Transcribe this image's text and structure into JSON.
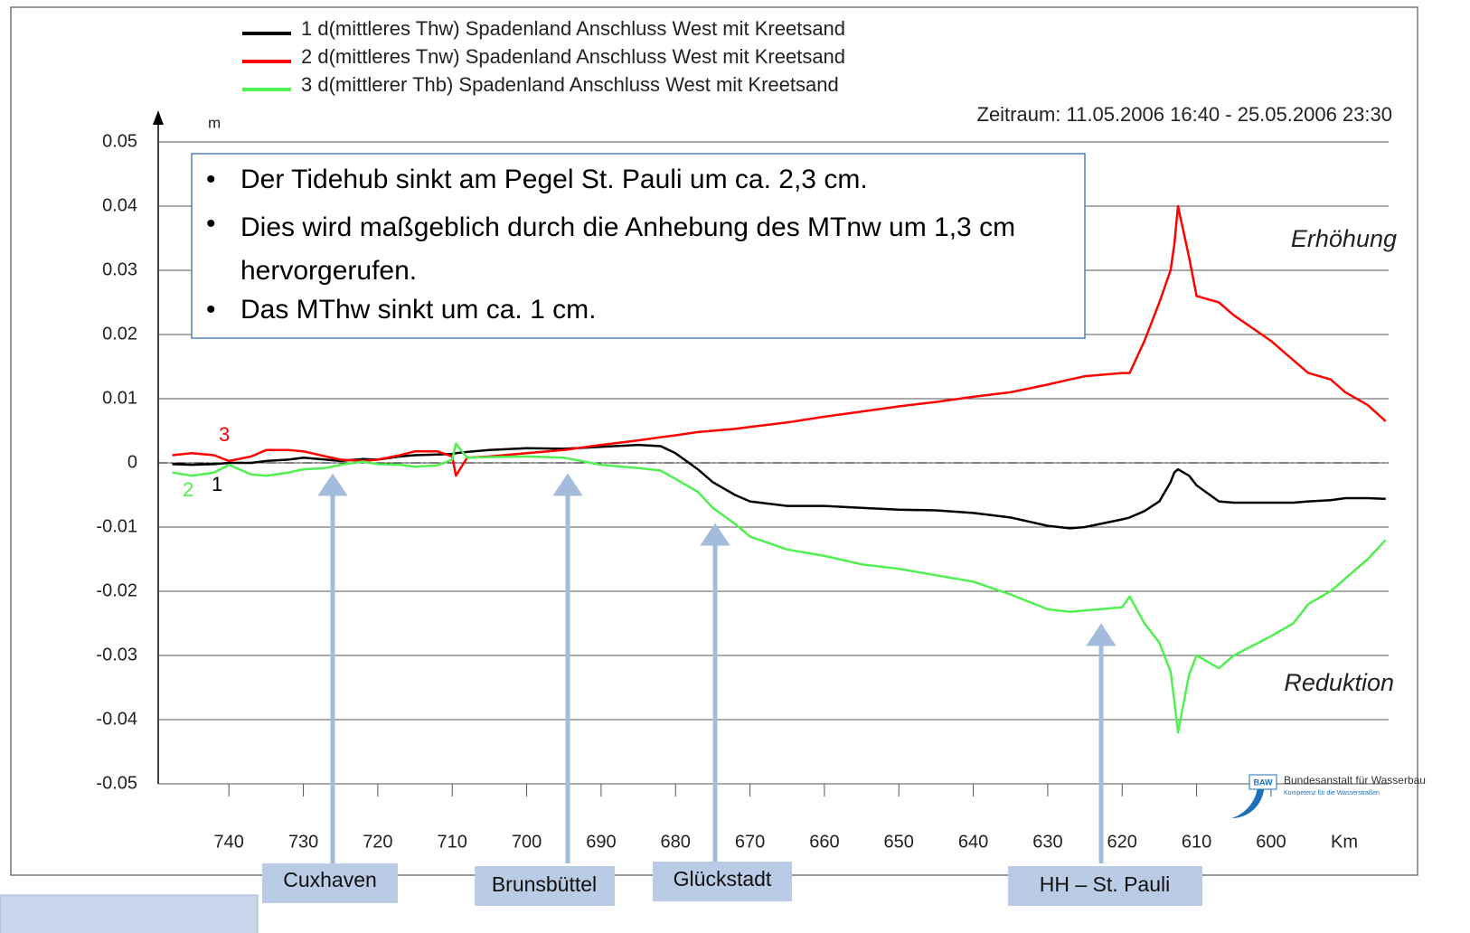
{
  "chart_data": {
    "type": "line",
    "legend": [
      "1 d(mittleres Thw) Spadenland Anschluss West mit Kreetsand",
      "2 d(mittleres Tnw) Spadenland Anschluss West mit Kreetsand",
      "3 d(mittlerer  Thb) Spadenland Anschluss West mit Kreetsand"
    ],
    "period": "Zeitraum: 11.05.2006 16:40 - 25.05.2006 23:30",
    "y_unit": "m",
    "x_unit": "Km",
    "zones": [
      "Erhöhung",
      "Reduktion"
    ],
    "curve_labels": [
      "3",
      "1",
      "2"
    ],
    "bullets": [
      "Der Tidehub sinkt am Pegel St. Pauli um ca. 2,3 cm.",
      "Dies wird maßgeblich durch die Anhebung des MTnw um 1,3 cm hervorgerufen.",
      "Das MThw sinkt um ca. 1 cm."
    ],
    "stations": [
      "Cuxhaven",
      "Brunsbüttel",
      "Glückstadt",
      "HH – St. Pauli"
    ],
    "logo": [
      "BAW",
      "Bundesanstalt für Wasserbau",
      "Kompetenz für die Wasserstraßen"
    ],
    "reference_line": 0,
    "xlim": [
      749.5,
      584.2
    ],
    "ylim": [
      -0.05,
      0.05
    ],
    "xticks": [
      740,
      730,
      720,
      710,
      700,
      690,
      680,
      670,
      660,
      650,
      640,
      630,
      620,
      610,
      600
    ],
    "yticks": [
      0.05,
      0.04,
      0.03,
      0.02,
      0.01,
      0,
      -0.01,
      -0.02,
      -0.03,
      -0.04,
      -0.05
    ],
    "grid": true,
    "x": [
      747.6,
      745,
      742,
      740,
      737,
      735,
      732,
      730,
      727,
      725,
      722,
      720,
      717,
      715,
      712,
      710,
      709.5,
      708,
      705,
      700,
      695,
      690,
      685,
      682,
      680,
      677,
      675,
      672,
      670,
      665,
      660,
      655,
      650,
      645,
      640,
      635,
      630,
      627,
      625,
      620,
      619,
      617,
      615,
      613.5,
      613,
      612.5,
      611,
      610,
      607,
      605,
      600,
      597,
      595,
      592,
      590,
      587,
      584.6
    ],
    "series": [
      {
        "name": "1",
        "color": "#000000",
        "values": [
          -0.0002,
          -0.0003,
          -0.0002,
          0,
          0,
          0.0003,
          0.0005,
          0.0008,
          0.0005,
          0.0003,
          0.0006,
          0.0005,
          0.001,
          0.0012,
          0.0013,
          0.0014,
          0.0015,
          0.0017,
          0.002,
          0.0023,
          0.0022,
          0.0025,
          0.0028,
          0.0026,
          0.0015,
          -0.001,
          -0.003,
          -0.005,
          -0.006,
          -0.0067,
          -0.0067,
          -0.007,
          -0.0073,
          -0.0074,
          -0.0078,
          -0.0085,
          -0.0098,
          -0.0102,
          -0.01,
          -0.0088,
          -0.0085,
          -0.0075,
          -0.006,
          -0.003,
          -0.0015,
          -0.001,
          -0.002,
          -0.0035,
          -0.006,
          -0.0062,
          -0.0062,
          -0.0062,
          -0.006,
          -0.0058,
          -0.0055,
          -0.0055,
          -0.0056
        ]
      },
      {
        "name": "2",
        "color": "#ff0000",
        "values": [
          0.0012,
          0.0015,
          0.0012,
          0.0003,
          0.001,
          0.002,
          0.002,
          0.0018,
          0.001,
          0.0005,
          0.0003,
          0.0005,
          0.0012,
          0.0018,
          0.0018,
          0.001,
          -0.002,
          0.0008,
          0.001,
          0.0015,
          0.002,
          0.0028,
          0.0035,
          0.004,
          0.0043,
          0.0048,
          0.005,
          0.0053,
          0.0056,
          0.0063,
          0.0072,
          0.008,
          0.0088,
          0.0095,
          0.0103,
          0.011,
          0.0122,
          0.013,
          0.0135,
          0.014,
          0.014,
          0.019,
          0.025,
          0.03,
          0.034,
          0.04,
          0.032,
          0.026,
          0.025,
          0.023,
          0.019,
          0.016,
          0.014,
          0.013,
          0.011,
          0.009,
          0.0065
        ]
      },
      {
        "name": "3",
        "color": "#4ff04f",
        "values": [
          -0.0015,
          -0.002,
          -0.0015,
          -0.0003,
          -0.0018,
          -0.002,
          -0.0015,
          -0.001,
          -0.0008,
          -0.0003,
          0.0002,
          -0.0002,
          -0.0003,
          -0.0006,
          -0.0004,
          0.0005,
          0.003,
          0.0008,
          0.0009,
          0.001,
          0.0008,
          -0.0003,
          -0.0008,
          -0.0012,
          -0.0025,
          -0.0045,
          -0.007,
          -0.0095,
          -0.0115,
          -0.0135,
          -0.0145,
          -0.0158,
          -0.0165,
          -0.0175,
          -0.0185,
          -0.0205,
          -0.0228,
          -0.0232,
          -0.023,
          -0.0225,
          -0.0208,
          -0.025,
          -0.028,
          -0.0325,
          -0.037,
          -0.042,
          -0.033,
          -0.03,
          -0.032,
          -0.03,
          -0.027,
          -0.025,
          -0.022,
          -0.02,
          -0.018,
          -0.015,
          -0.012
        ]
      }
    ]
  }
}
